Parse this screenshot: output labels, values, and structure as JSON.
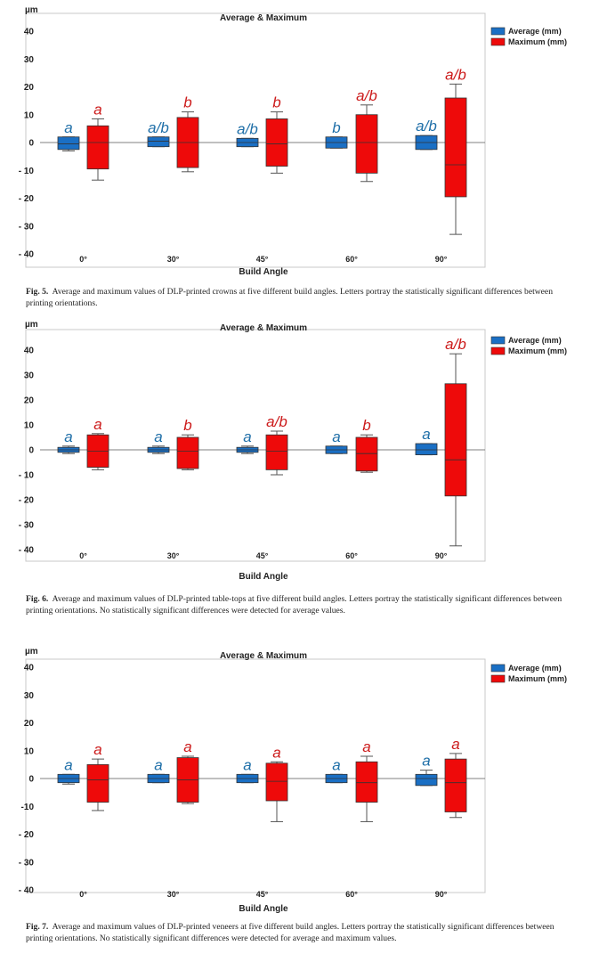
{
  "colors": {
    "average": "#1a6fc4",
    "maximum": "#ee0a0a",
    "average_label": "#1f6fa8",
    "maximum_label": "#cc1b1b",
    "frame": "#c8c8c8",
    "zero_line": "#808080"
  },
  "chart_data": [
    {
      "type": "boxplot",
      "title": "Average & Maximum",
      "unit": "µm",
      "xlabel": "Build Angle",
      "categories": [
        "0°",
        "30°",
        "45°",
        "60°",
        "90°"
      ],
      "ylim": [
        -40,
        40
      ],
      "yticks": [
        {
          "v": 40,
          "label": "40"
        },
        {
          "v": 30,
          "label": "30"
        },
        {
          "v": 20,
          "label": "20"
        },
        {
          "v": 10,
          "label": "10"
        },
        {
          "v": 0,
          "label": "0"
        },
        {
          "v": -10,
          "label": "- 10"
        },
        {
          "v": -20,
          "label": "- 20"
        },
        {
          "v": -30,
          "label": "- 30"
        },
        {
          "v": -40,
          "label": "- 40"
        }
      ],
      "legend": [
        "Average (mm)",
        "Maximum (mm)"
      ],
      "series": [
        {
          "name": "Average (mm)",
          "boxes": [
            {
              "min": -3,
              "q1": -2.5,
              "median": -0.5,
              "q3": 2,
              "max": 2,
              "letter": "a"
            },
            {
              "min": -1.5,
              "q1": -1.5,
              "median": 0.5,
              "q3": 2,
              "max": 2,
              "letter": "a/b"
            },
            {
              "min": -1.5,
              "q1": -1.5,
              "median": 0,
              "q3": 1.5,
              "max": 1.5,
              "letter": "a/b"
            },
            {
              "min": -2,
              "q1": -2,
              "median": 0,
              "q3": 2,
              "max": 2,
              "letter": "b"
            },
            {
              "min": -2.5,
              "q1": -2.5,
              "median": 0,
              "q3": 2.5,
              "max": 2.5,
              "letter": "a/b"
            }
          ]
        },
        {
          "name": "Maximum (mm)",
          "boxes": [
            {
              "min": -13.5,
              "q1": -9.5,
              "median": 0,
              "q3": 6,
              "max": 8.5,
              "letter": "a"
            },
            {
              "min": -10.5,
              "q1": -9,
              "median": 0,
              "q3": 9,
              "max": 11,
              "letter": "b"
            },
            {
              "min": -11,
              "q1": -8.5,
              "median": -0.5,
              "q3": 8.5,
              "max": 11,
              "letter": "b"
            },
            {
              "min": -14,
              "q1": -11,
              "median": 0,
              "q3": 10,
              "max": 13.5,
              "letter": "a/b"
            },
            {
              "min": -33,
              "q1": -19.5,
              "median": -8,
              "q3": 16,
              "max": 21,
              "letter": "a/b"
            }
          ]
        }
      ],
      "caption": {
        "label": "Fig. 5.",
        "text": "Average and maximum values of DLP-printed crowns at five different build angles. Letters portray the statistically significant differences between printing orientations."
      }
    },
    {
      "type": "boxplot",
      "title": "Average & Maximum",
      "unit": "µm",
      "xlabel": "Build Angle",
      "categories": [
        "0°",
        "30°",
        "45°",
        "60°",
        "90°"
      ],
      "ylim": [
        -40,
        40
      ],
      "yticks": [
        {
          "v": 40,
          "label": "40"
        },
        {
          "v": 30,
          "label": "30"
        },
        {
          "v": 20,
          "label": "20"
        },
        {
          "v": 10,
          "label": "10"
        },
        {
          "v": 0,
          "label": "0"
        },
        {
          "v": -10,
          "label": "- 10"
        },
        {
          "v": -20,
          "label": "- 20"
        },
        {
          "v": -30,
          "label": "- 30"
        },
        {
          "v": -40,
          "label": "- 40"
        }
      ],
      "legend": [
        "Average (mm)",
        "Maximum (mm)"
      ],
      "series": [
        {
          "name": "Average (mm)",
          "boxes": [
            {
              "min": -1.5,
              "q1": -1,
              "median": 0,
              "q3": 1,
              "max": 1.5,
              "letter": "a"
            },
            {
              "min": -1.5,
              "q1": -1,
              "median": 0,
              "q3": 1,
              "max": 1.5,
              "letter": "a"
            },
            {
              "min": -1.5,
              "q1": -1,
              "median": 0,
              "q3": 1,
              "max": 1.5,
              "letter": "a"
            },
            {
              "min": -1.5,
              "q1": -1.5,
              "median": 0,
              "q3": 1.5,
              "max": 1.5,
              "letter": "a"
            },
            {
              "min": -2,
              "q1": -2,
              "median": 0,
              "q3": 2.5,
              "max": 2.5,
              "letter": "a"
            }
          ]
        },
        {
          "name": "Maximum (mm)",
          "boxes": [
            {
              "min": -8,
              "q1": -7,
              "median": -0.5,
              "q3": 6,
              "max": 6.5,
              "letter": "a"
            },
            {
              "min": -8,
              "q1": -7.5,
              "median": -0.5,
              "q3": 5,
              "max": 6,
              "letter": "b"
            },
            {
              "min": -10,
              "q1": -8,
              "median": -0.5,
              "q3": 6,
              "max": 7.5,
              "letter": "a/b"
            },
            {
              "min": -9,
              "q1": -8.5,
              "median": -1.5,
              "q3": 5,
              "max": 6,
              "letter": "b"
            },
            {
              "min": -38.5,
              "q1": -18.5,
              "median": -4,
              "q3": 26.5,
              "max": 38.5,
              "letter": "a/b"
            }
          ]
        }
      ],
      "caption": {
        "label": "Fig. 6.",
        "text": "Average and maximum values of DLP-printed table-tops at five different build angles. Letters portray the statistically significant differences between printing orientations. No statistically significant differences were detected for average values."
      }
    },
    {
      "type": "boxplot",
      "title": "Average & Maximum",
      "unit": "µm",
      "xlabel": "Build Angle",
      "categories": [
        "0°",
        "30°",
        "45°",
        "60°",
        "90°"
      ],
      "ylim": [
        -40,
        40
      ],
      "yticks": [
        {
          "v": 40,
          "label": "40"
        },
        {
          "v": 30,
          "label": "30"
        },
        {
          "v": 20,
          "label": "20"
        },
        {
          "v": 10,
          "label": "10"
        },
        {
          "v": 0,
          "label": "0"
        },
        {
          "v": -10,
          "label": "-10"
        },
        {
          "v": -20,
          "label": "- 20"
        },
        {
          "v": -30,
          "label": "- 30"
        },
        {
          "v": -40,
          "label": "- 40"
        }
      ],
      "legend": [
        "Average (mm)",
        "Maximum (mm)"
      ],
      "series": [
        {
          "name": "Average (mm)",
          "boxes": [
            {
              "min": -2,
              "q1": -1.5,
              "median": 0,
              "q3": 1.5,
              "max": 1.5,
              "letter": "a"
            },
            {
              "min": -1.5,
              "q1": -1.5,
              "median": 0,
              "q3": 1.5,
              "max": 1.5,
              "letter": "a"
            },
            {
              "min": -1.5,
              "q1": -1.5,
              "median": 0,
              "q3": 1.5,
              "max": 1.5,
              "letter": "a"
            },
            {
              "min": -1.5,
              "q1": -1.5,
              "median": 0,
              "q3": 1.5,
              "max": 1.5,
              "letter": "a"
            },
            {
              "min": -2.5,
              "q1": -2.5,
              "median": 0,
              "q3": 1.5,
              "max": 3,
              "letter": "a"
            }
          ]
        },
        {
          "name": "Maximum (mm)",
          "boxes": [
            {
              "min": -11.5,
              "q1": -8.5,
              "median": -0.5,
              "q3": 5,
              "max": 7,
              "letter": "a"
            },
            {
              "min": -9,
              "q1": -8.5,
              "median": -0.5,
              "q3": 7.5,
              "max": 8,
              "letter": "a"
            },
            {
              "min": -15.5,
              "q1": -8,
              "median": -1,
              "q3": 5.5,
              "max": 6,
              "letter": "a"
            },
            {
              "min": -15.5,
              "q1": -8.5,
              "median": -1.5,
              "q3": 6,
              "max": 8,
              "letter": "a"
            },
            {
              "min": -14,
              "q1": -12,
              "median": -1.5,
              "q3": 7,
              "max": 9,
              "letter": "a"
            }
          ]
        }
      ],
      "caption": {
        "label": "Fig. 7.",
        "text": "Average and maximum values of DLP-printed veneers at five different build angles. Letters portray the statistically significant differences between printing orientations. No statistically significant differences were detected for average and maximum values."
      }
    }
  ]
}
